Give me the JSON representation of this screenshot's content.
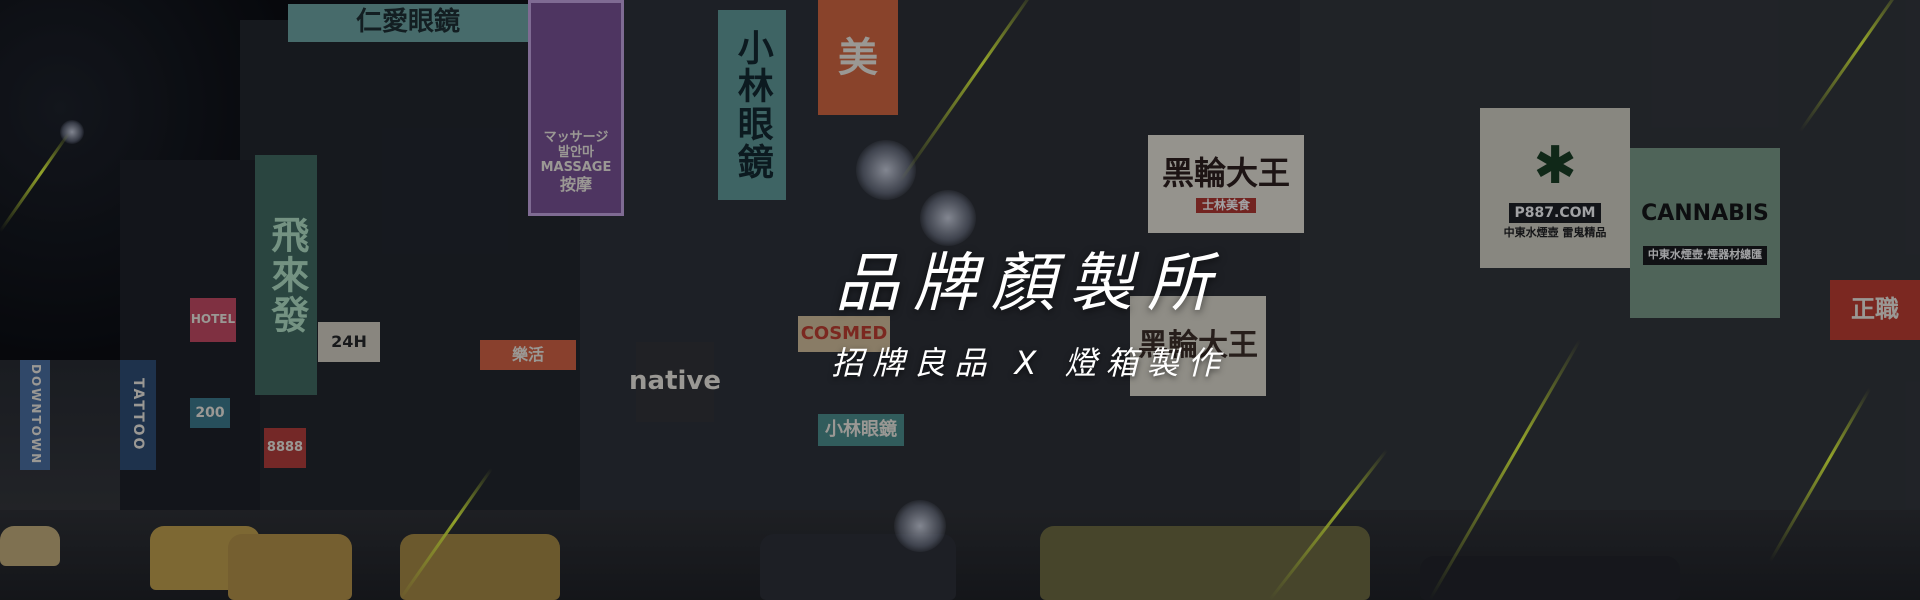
{
  "hero": {
    "title": "品牌顏製所",
    "subtitle": "招牌良品 X 燈箱製作"
  },
  "signs": {
    "rensheng": "仁愛眼鏡",
    "massage_jp": "マッサージ",
    "massage_kr": "발안마",
    "massage_en": "MASSAGE",
    "massage_cn": "按摩",
    "mei": "美",
    "xiaolin": "小林眼鏡",
    "feilai": "飛來發",
    "heilun": "黑輪大王",
    "heilun_sub": "士林美食",
    "p887": "P887.COM",
    "p887_sub": "中東水煙壺 雷鬼精品",
    "cannabis": "CANNABIS",
    "cannabis_sub": "中東水煙壺·煙器材總匯",
    "native": "native",
    "cosmed": "COSMED",
    "xiaolin_bottom": "小林眼鏡",
    "zhengzhi": "正職",
    "yuanbo": "樂活",
    "heilun2": "黑輪大王",
    "tatoo": "TATTOO",
    "num24h": "24H",
    "num888": "8888",
    "num200": "200",
    "hotel": "HOTEL",
    "downtown": "DOWNTOWN"
  },
  "colors": {
    "accent_streak": "#e6ff3a",
    "title_color": "#ffffff"
  }
}
